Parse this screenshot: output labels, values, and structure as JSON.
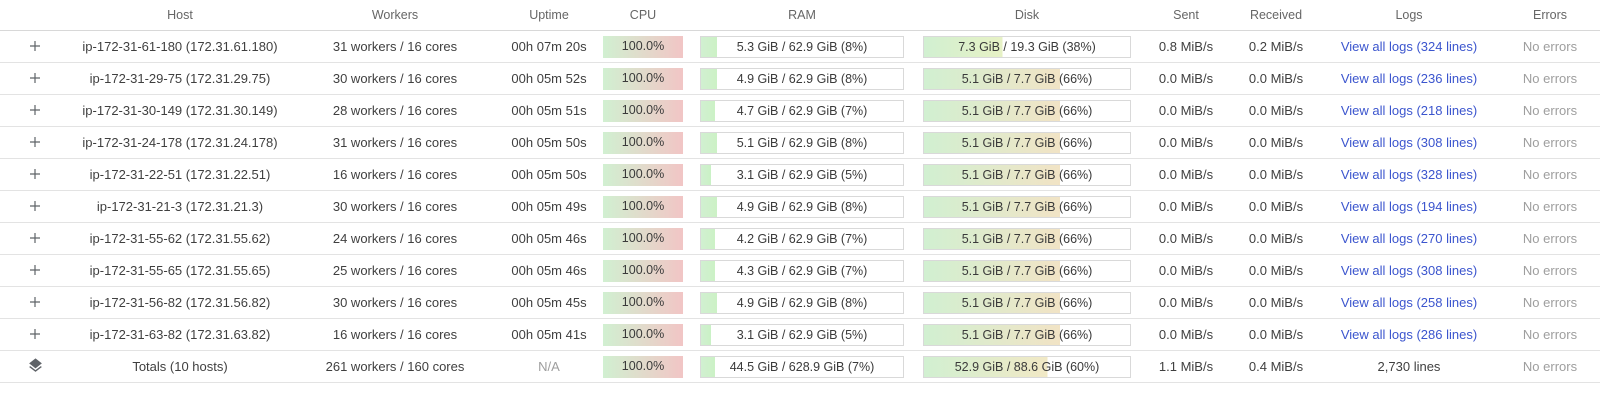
{
  "columns": [
    "Host",
    "Workers",
    "Uptime",
    "CPU",
    "RAM",
    "Disk",
    "Sent",
    "Received",
    "Logs",
    "Errors"
  ],
  "colors": {
    "link_blue": "#3b55ce",
    "muted_gray": "#9e9e9e",
    "bar_green_start": "#d5f0d1",
    "bar_red_end": "#f7d1cc",
    "bar_tan_end": "#ecdfc4",
    "icon_gray": "#5f6368"
  },
  "icons": {
    "expand": "plus-icon",
    "totals": "layers-icon"
  },
  "rows": [
    {
      "host": "ip-172-31-61-180 (172.31.61.180)",
      "workers": "31 workers / 16 cores",
      "uptime": "00h 07m 20s",
      "cpu_label": "100.0%",
      "cpu_pct": 100,
      "ram_label": "5.3 GiB / 62.9 GiB (8%)",
      "ram_pct": 8,
      "disk_label": "7.3 GiB / 19.3 GiB (38%)",
      "disk_pct": 38,
      "sent": "0.8 MiB/s",
      "received": "0.2 MiB/s",
      "logs_link": "View all logs (324 lines)",
      "errors": "No errors"
    },
    {
      "host": "ip-172-31-29-75 (172.31.29.75)",
      "workers": "30 workers / 16 cores",
      "uptime": "00h 05m 52s",
      "cpu_label": "100.0%",
      "cpu_pct": 100,
      "ram_label": "4.9 GiB / 62.9 GiB (8%)",
      "ram_pct": 8,
      "disk_label": "5.1 GiB / 7.7 GiB (66%)",
      "disk_pct": 66,
      "sent": "0.0 MiB/s",
      "received": "0.0 MiB/s",
      "logs_link": "View all logs (236 lines)",
      "errors": "No errors"
    },
    {
      "host": "ip-172-31-30-149 (172.31.30.149)",
      "workers": "28 workers / 16 cores",
      "uptime": "00h 05m 51s",
      "cpu_label": "100.0%",
      "cpu_pct": 100,
      "ram_label": "4.7 GiB / 62.9 GiB (7%)",
      "ram_pct": 7,
      "disk_label": "5.1 GiB / 7.7 GiB (66%)",
      "disk_pct": 66,
      "sent": "0.0 MiB/s",
      "received": "0.0 MiB/s",
      "logs_link": "View all logs (218 lines)",
      "errors": "No errors"
    },
    {
      "host": "ip-172-31-24-178 (172.31.24.178)",
      "workers": "31 workers / 16 cores",
      "uptime": "00h 05m 50s",
      "cpu_label": "100.0%",
      "cpu_pct": 100,
      "ram_label": "5.1 GiB / 62.9 GiB (8%)",
      "ram_pct": 8,
      "disk_label": "5.1 GiB / 7.7 GiB (66%)",
      "disk_pct": 66,
      "sent": "0.0 MiB/s",
      "received": "0.0 MiB/s",
      "logs_link": "View all logs (308 lines)",
      "errors": "No errors"
    },
    {
      "host": "ip-172-31-22-51 (172.31.22.51)",
      "workers": "16 workers / 16 cores",
      "uptime": "00h 05m 50s",
      "cpu_label": "100.0%",
      "cpu_pct": 100,
      "ram_label": "3.1 GiB / 62.9 GiB (5%)",
      "ram_pct": 5,
      "disk_label": "5.1 GiB / 7.7 GiB (66%)",
      "disk_pct": 66,
      "sent": "0.0 MiB/s",
      "received": "0.0 MiB/s",
      "logs_link": "View all logs (328 lines)",
      "errors": "No errors"
    },
    {
      "host": "ip-172-31-21-3 (172.31.21.3)",
      "workers": "30 workers / 16 cores",
      "uptime": "00h 05m 49s",
      "cpu_label": "100.0%",
      "cpu_pct": 100,
      "ram_label": "4.9 GiB / 62.9 GiB (8%)",
      "ram_pct": 8,
      "disk_label": "5.1 GiB / 7.7 GiB (66%)",
      "disk_pct": 66,
      "sent": "0.0 MiB/s",
      "received": "0.0 MiB/s",
      "logs_link": "View all logs (194 lines)",
      "errors": "No errors"
    },
    {
      "host": "ip-172-31-55-62 (172.31.55.62)",
      "workers": "24 workers / 16 cores",
      "uptime": "00h 05m 46s",
      "cpu_label": "100.0%",
      "cpu_pct": 100,
      "ram_label": "4.2 GiB / 62.9 GiB (7%)",
      "ram_pct": 7,
      "disk_label": "5.1 GiB / 7.7 GiB (66%)",
      "disk_pct": 66,
      "sent": "0.0 MiB/s",
      "received": "0.0 MiB/s",
      "logs_link": "View all logs (270 lines)",
      "errors": "No errors"
    },
    {
      "host": "ip-172-31-55-65 (172.31.55.65)",
      "workers": "25 workers / 16 cores",
      "uptime": "00h 05m 46s",
      "cpu_label": "100.0%",
      "cpu_pct": 100,
      "ram_label": "4.3 GiB / 62.9 GiB (7%)",
      "ram_pct": 7,
      "disk_label": "5.1 GiB / 7.7 GiB (66%)",
      "disk_pct": 66,
      "sent": "0.0 MiB/s",
      "received": "0.0 MiB/s",
      "logs_link": "View all logs (308 lines)",
      "errors": "No errors"
    },
    {
      "host": "ip-172-31-56-82 (172.31.56.82)",
      "workers": "30 workers / 16 cores",
      "uptime": "00h 05m 45s",
      "cpu_label": "100.0%",
      "cpu_pct": 100,
      "ram_label": "4.9 GiB / 62.9 GiB (8%)",
      "ram_pct": 8,
      "disk_label": "5.1 GiB / 7.7 GiB (66%)",
      "disk_pct": 66,
      "sent": "0.0 MiB/s",
      "received": "0.0 MiB/s",
      "logs_link": "View all logs (258 lines)",
      "errors": "No errors"
    },
    {
      "host": "ip-172-31-63-82 (172.31.63.82)",
      "workers": "16 workers / 16 cores",
      "uptime": "00h 05m 41s",
      "cpu_label": "100.0%",
      "cpu_pct": 100,
      "ram_label": "3.1 GiB / 62.9 GiB (5%)",
      "ram_pct": 5,
      "disk_label": "5.1 GiB / 7.7 GiB (66%)",
      "disk_pct": 66,
      "sent": "0.0 MiB/s",
      "received": "0.0 MiB/s",
      "logs_link": "View all logs (286 lines)",
      "errors": "No errors"
    }
  ],
  "totals": {
    "host": "Totals (10 hosts)",
    "workers": "261 workers / 160 cores",
    "uptime": "N/A",
    "cpu_label": "100.0%",
    "cpu_pct": 100,
    "ram_label": "44.5 GiB / 628.9 GiB (7%)",
    "ram_pct": 7,
    "disk_label": "52.9 GiB / 88.6 GiB (60%)",
    "disk_pct": 60,
    "sent": "1.1 MiB/s",
    "received": "0.4 MiB/s",
    "logs_text": "2,730 lines",
    "errors": "No errors"
  }
}
